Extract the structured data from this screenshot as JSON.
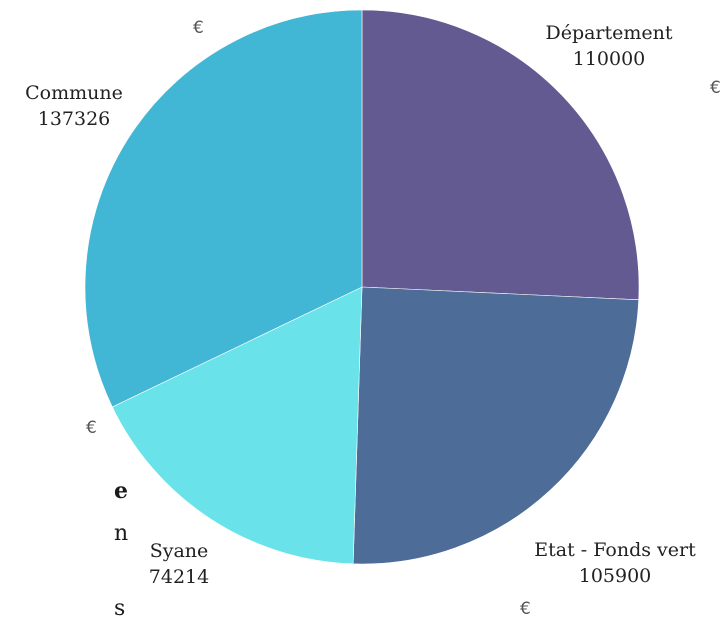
{
  "chart_data": {
    "type": "pie",
    "title": "",
    "unit_symbol": "€",
    "slices": [
      {
        "label": "Département",
        "value": 110000,
        "color": "#635a91"
      },
      {
        "label": "Etat - Fonds vert",
        "value": 105900,
        "color": "#4d6c98"
      },
      {
        "label": "Syane",
        "value": 74214,
        "color": "#69e3e9"
      },
      {
        "label": "Commune",
        "value": 137326,
        "color": "#42b6d5"
      }
    ],
    "start_angle_deg": 0,
    "direction": "clockwise"
  },
  "side_text": [
    "e",
    "n",
    "s"
  ]
}
